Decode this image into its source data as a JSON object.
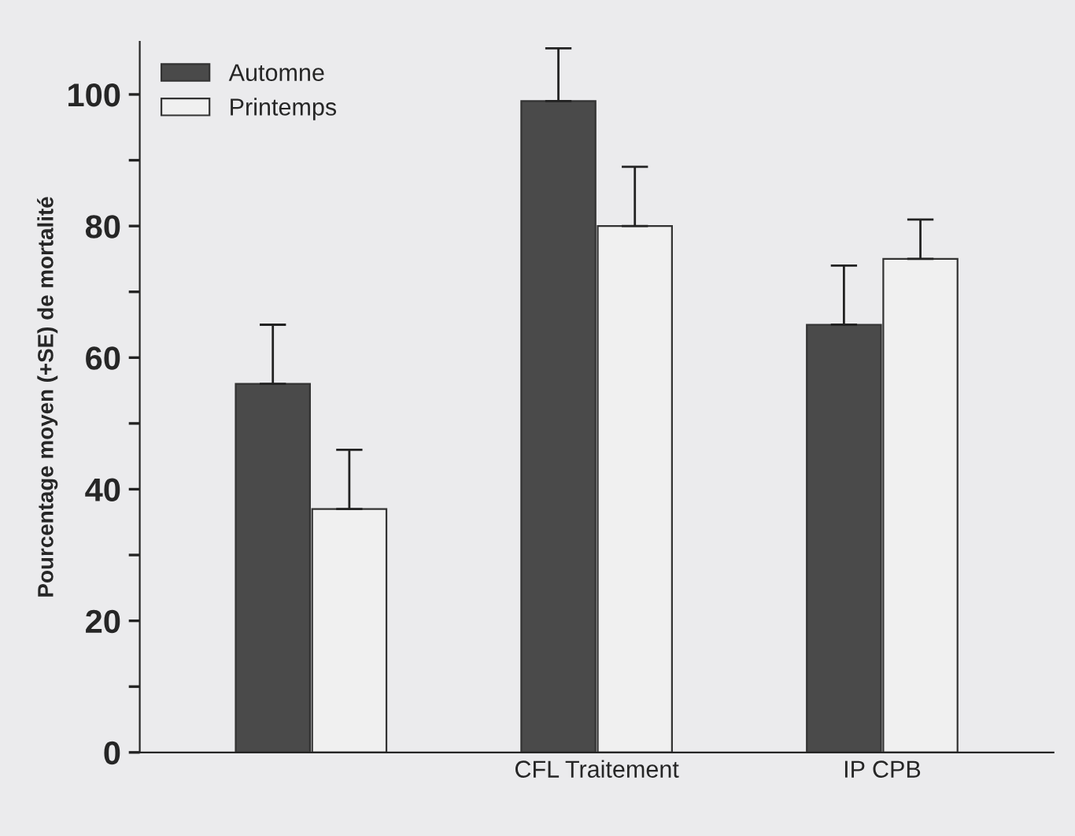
{
  "chart_data": {
    "type": "bar",
    "ylabel": "Pourcentage moyen (+SE) de mortalité",
    "categories": [
      null,
      "CFL Traitement",
      "IP CPB"
    ],
    "series": [
      {
        "name": "Automne",
        "color": "#4a4a4a",
        "values": [
          56,
          99,
          65
        ],
        "errors": [
          9,
          8,
          9
        ]
      },
      {
        "name": "Printemps",
        "color": "#f0f0f0",
        "values": [
          37,
          80,
          75
        ],
        "errors": [
          9,
          9,
          6
        ]
      }
    ],
    "ylim": [
      0,
      108
    ],
    "yticks": [
      0,
      {
        "value": 10,
        "label": null
      },
      20,
      {
        "value": 30,
        "label": null
      },
      40,
      {
        "value": 50,
        "label": null
      },
      60,
      {
        "value": 70,
        "label": null
      },
      80,
      {
        "value": 90,
        "label": null
      },
      100
    ],
    "grid": false,
    "legend": "top left"
  }
}
